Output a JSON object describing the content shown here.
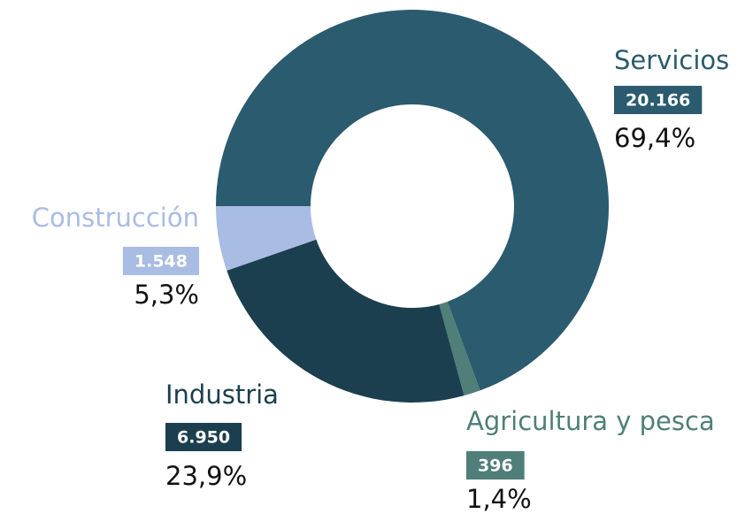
{
  "chart_data": {
    "type": "donut",
    "categories": [
      "Servicios",
      "Agricultura y pesca",
      "Industria",
      "Construcción"
    ],
    "values": [
      20166,
      396,
      6950,
      1548
    ],
    "value_labels": [
      "20.166",
      "396",
      "6.950",
      "1.548"
    ],
    "percents": [
      69.4,
      1.4,
      23.9,
      5.3
    ],
    "percent_labels": [
      "69,4%",
      "1,4%",
      "23,9%",
      "5,3%"
    ],
    "colors": [
      "#2a5b6e",
      "#4f7f78",
      "#1b3f4e",
      "#a9bce3"
    ]
  }
}
